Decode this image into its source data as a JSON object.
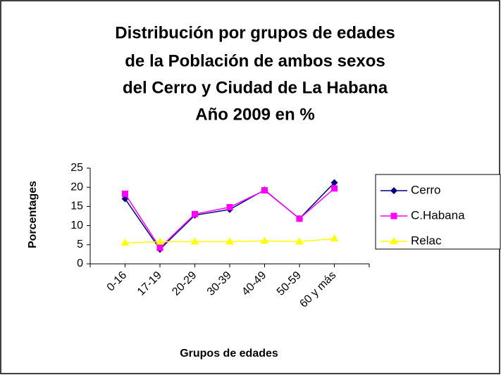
{
  "chart_data": {
    "type": "line",
    "title": [
      "Distribución por grupos de edades",
      "de la Población de ambos sexos",
      "del Cerro y  Ciudad de La Habana",
      "Año 2009 en %"
    ],
    "x_label": "Grupos de edades",
    "y_label": "Porcentages",
    "categories": [
      "0-16",
      "17-19",
      "20-29",
      "30-39",
      "40-49",
      "50-59",
      "60 y más"
    ],
    "series": [
      {
        "name": "Cerro",
        "color": "#000080",
        "marker": "diamond",
        "values": [
          17,
          3.8,
          12.7,
          14.2,
          19.3,
          11.8,
          21.2
        ]
      },
      {
        "name": "C.Habana",
        "color": "#ff00ff",
        "marker": "square",
        "values": [
          18.3,
          4.2,
          13,
          14.8,
          19.2,
          11.8,
          19.7
        ]
      },
      {
        "name": "Relac",
        "color": "#ffff00",
        "marker": "triangle",
        "values": [
          5.5,
          5.8,
          5.8,
          5.8,
          6,
          5.8,
          6.6
        ]
      }
    ],
    "ylim": [
      0,
      25
    ],
    "yticks": [
      0,
      5,
      10,
      15,
      20,
      25
    ],
    "grid": false,
    "legend": "right"
  }
}
